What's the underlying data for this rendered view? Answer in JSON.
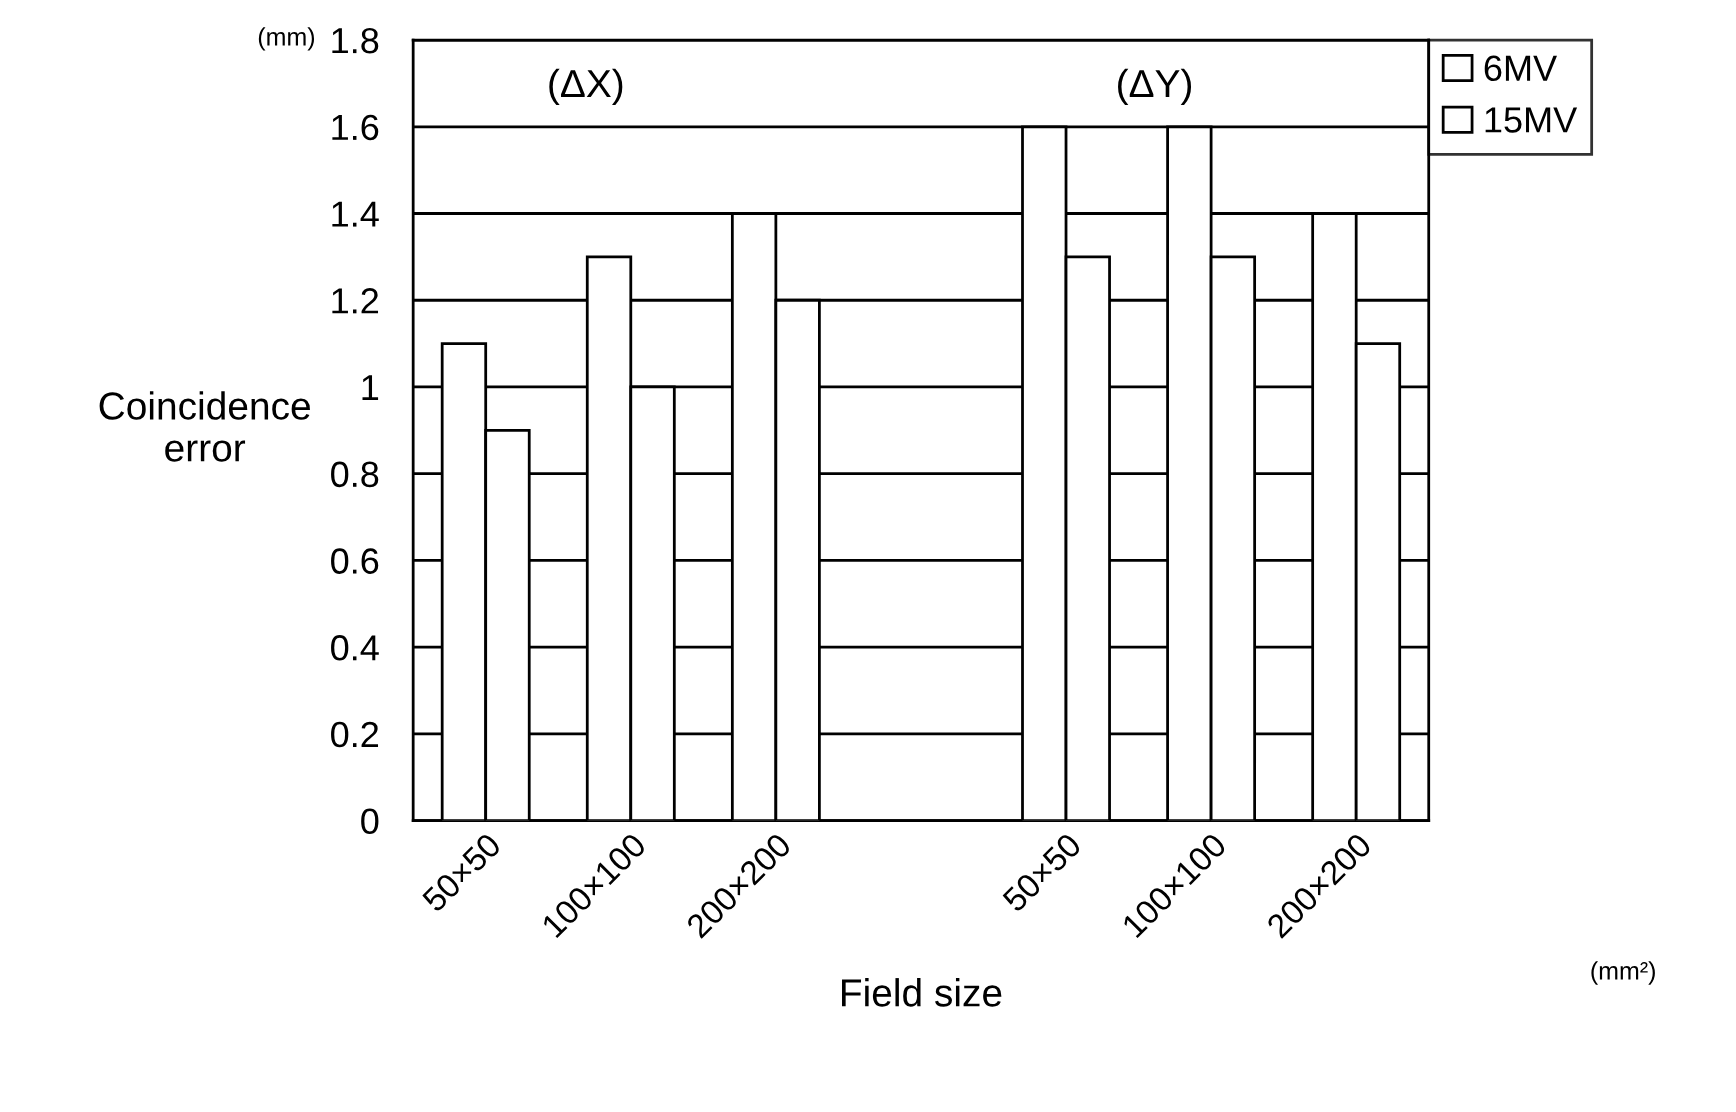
{
  "chart_data": {
    "type": "bar",
    "xlabel": "Field size",
    "ylabel": "Coincidence\nerror",
    "categories": [
      "50×50",
      "100×100",
      "200×200",
      null,
      "50×50",
      "100×100",
      "200×200"
    ],
    "series": [
      {
        "name": "6MV",
        "color": "#ffffff",
        "values": [
          1.1,
          1.3,
          1.4,
          null,
          1.6,
          1.6,
          1.4
        ]
      },
      {
        "name": "15MV",
        "color": "#ffffff",
        "values": [
          0.9,
          1.0,
          1.2,
          null,
          1.3,
          1.3,
          1.1
        ]
      }
    ],
    "ylim": [
      0,
      1.8
    ],
    "yticks": [
      0,
      0.2,
      0.4,
      0.6,
      0.8,
      1,
      1.2,
      1.4,
      1.6,
      1.8
    ],
    "grid": "y",
    "legend": "top right",
    "annotations": [
      "(ΔX)",
      "(ΔY)",
      "(mm)",
      "(mm²)"
    ]
  }
}
